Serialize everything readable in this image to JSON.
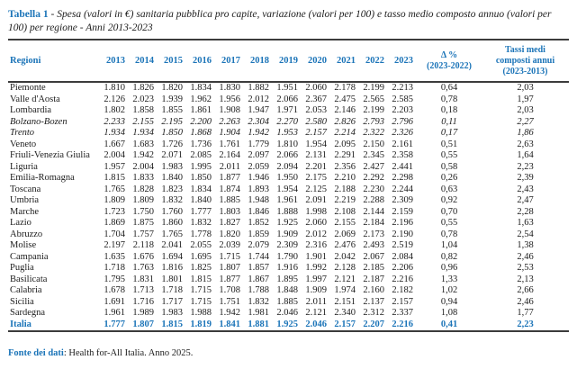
{
  "title": {
    "label": "Tabella 1",
    "separator": " - ",
    "text": "Spesa (valori in €) sanitaria pubblica pro capite, variazione (valori per 100) e tasso medio composto annuo (valori per 100) per regione - Anni 2013-2023"
  },
  "colors": {
    "accent": "#1b74b8",
    "rule": "#3c3c3c"
  },
  "table": {
    "region_header": "Regioni",
    "year_columns": [
      "2013",
      "2014",
      "2015",
      "2016",
      "2017",
      "2018",
      "2019",
      "2020",
      "2021",
      "2022",
      "2023"
    ],
    "delta_header": [
      "Δ %",
      "(2023-2022)"
    ],
    "tassi_header": [
      "Tassi medi",
      "composti annui",
      "(2023-2013)"
    ],
    "rows": [
      {
        "region": "Piemonte",
        "values": [
          "1.810",
          "1.826",
          "1.820",
          "1.834",
          "1.830",
          "1.882",
          "1.951",
          "2.060",
          "2.178",
          "2.199",
          "2.213"
        ],
        "delta": "0,64",
        "tasso": "2,03",
        "style": "normal"
      },
      {
        "region": "Valle d'Aosta",
        "values": [
          "2.126",
          "2.023",
          "1.939",
          "1.962",
          "1.956",
          "2.012",
          "2.066",
          "2.367",
          "2.475",
          "2.565",
          "2.585"
        ],
        "delta": "0,78",
        "tasso": "1,97",
        "style": "normal"
      },
      {
        "region": "Lombardia",
        "values": [
          "1.802",
          "1.858",
          "1.855",
          "1.861",
          "1.908",
          "1.947",
          "1.971",
          "2.053",
          "2.146",
          "2.199",
          "2.203"
        ],
        "delta": "0,18",
        "tasso": "2,03",
        "style": "normal"
      },
      {
        "region": "Bolzano-Bozen",
        "values": [
          "2.233",
          "2.155",
          "2.195",
          "2.200",
          "2.263",
          "2.304",
          "2.270",
          "2.580",
          "2.826",
          "2.793",
          "2.796"
        ],
        "delta": "0,11",
        "tasso": "2,27",
        "style": "italic"
      },
      {
        "region": "Trento",
        "values": [
          "1.934",
          "1.934",
          "1.850",
          "1.868",
          "1.904",
          "1.942",
          "1.953",
          "2.157",
          "2.214",
          "2.322",
          "2.326"
        ],
        "delta": "0,17",
        "tasso": "1,86",
        "style": "italic"
      },
      {
        "region": "Veneto",
        "values": [
          "1.667",
          "1.683",
          "1.726",
          "1.736",
          "1.761",
          "1.779",
          "1.810",
          "1.954",
          "2.095",
          "2.150",
          "2.161"
        ],
        "delta": "0,51",
        "tasso": "2,63",
        "style": "normal"
      },
      {
        "region": "Friuli-Venezia Giulia",
        "values": [
          "2.004",
          "1.942",
          "2.071",
          "2.085",
          "2.164",
          "2.097",
          "2.066",
          "2.131",
          "2.291",
          "2.345",
          "2.358"
        ],
        "delta": "0,55",
        "tasso": "1,64",
        "style": "normal"
      },
      {
        "region": "Liguria",
        "values": [
          "1.957",
          "2.004",
          "1.983",
          "1.995",
          "2.011",
          "2.059",
          "2.094",
          "2.201",
          "2.356",
          "2.427",
          "2.441"
        ],
        "delta": "0,58",
        "tasso": "2,23",
        "style": "normal"
      },
      {
        "region": "Emilia-Romagna",
        "values": [
          "1.815",
          "1.833",
          "1.840",
          "1.850",
          "1.877",
          "1.946",
          "1.950",
          "2.175",
          "2.210",
          "2.292",
          "2.298"
        ],
        "delta": "0,26",
        "tasso": "2,39",
        "style": "normal"
      },
      {
        "region": "Toscana",
        "values": [
          "1.765",
          "1.828",
          "1.823",
          "1.834",
          "1.874",
          "1.893",
          "1.954",
          "2.125",
          "2.188",
          "2.230",
          "2.244"
        ],
        "delta": "0,63",
        "tasso": "2,43",
        "style": "normal"
      },
      {
        "region": "Umbria",
        "values": [
          "1.809",
          "1.809",
          "1.832",
          "1.840",
          "1.885",
          "1.948",
          "1.961",
          "2.091",
          "2.219",
          "2.288",
          "2.309"
        ],
        "delta": "0,92",
        "tasso": "2,47",
        "style": "normal"
      },
      {
        "region": "Marche",
        "values": [
          "1.723",
          "1.750",
          "1.760",
          "1.777",
          "1.803",
          "1.846",
          "1.888",
          "1.998",
          "2.108",
          "2.144",
          "2.159"
        ],
        "delta": "0,70",
        "tasso": "2,28",
        "style": "normal"
      },
      {
        "region": "Lazio",
        "values": [
          "1.869",
          "1.875",
          "1.860",
          "1.832",
          "1.827",
          "1.852",
          "1.925",
          "2.060",
          "2.155",
          "2.184",
          "2.196"
        ],
        "delta": "0,55",
        "tasso": "1,63",
        "style": "normal"
      },
      {
        "region": "Abruzzo",
        "values": [
          "1.704",
          "1.757",
          "1.765",
          "1.778",
          "1.820",
          "1.859",
          "1.909",
          "2.012",
          "2.069",
          "2.173",
          "2.190"
        ],
        "delta": "0,78",
        "tasso": "2,54",
        "style": "normal"
      },
      {
        "region": "Molise",
        "values": [
          "2.197",
          "2.118",
          "2.041",
          "2.055",
          "2.039",
          "2.079",
          "2.309",
          "2.316",
          "2.476",
          "2.493",
          "2.519"
        ],
        "delta": "1,04",
        "tasso": "1,38",
        "style": "normal"
      },
      {
        "region": "Campania",
        "values": [
          "1.635",
          "1.676",
          "1.694",
          "1.695",
          "1.715",
          "1.744",
          "1.790",
          "1.901",
          "2.042",
          "2.067",
          "2.084"
        ],
        "delta": "0,82",
        "tasso": "2,46",
        "style": "normal"
      },
      {
        "region": "Puglia",
        "values": [
          "1.718",
          "1.763",
          "1.816",
          "1.825",
          "1.807",
          "1.857",
          "1.916",
          "1.992",
          "2.128",
          "2.185",
          "2.206"
        ],
        "delta": "0,96",
        "tasso": "2,53",
        "style": "normal"
      },
      {
        "region": "Basilicata",
        "values": [
          "1.795",
          "1.831",
          "1.801",
          "1.815",
          "1.877",
          "1.867",
          "1.895",
          "1.997",
          "2.121",
          "2.187",
          "2.216"
        ],
        "delta": "1,33",
        "tasso": "2,13",
        "style": "normal"
      },
      {
        "region": "Calabria",
        "values": [
          "1.678",
          "1.713",
          "1.718",
          "1.715",
          "1.708",
          "1.788",
          "1.848",
          "1.909",
          "1.974",
          "2.160",
          "2.182"
        ],
        "delta": "1,02",
        "tasso": "2,66",
        "style": "normal"
      },
      {
        "region": "Sicilia",
        "values": [
          "1.691",
          "1.716",
          "1.717",
          "1.715",
          "1.751",
          "1.832",
          "1.885",
          "2.011",
          "2.151",
          "2.137",
          "2.157"
        ],
        "delta": "0,94",
        "tasso": "2,46",
        "style": "normal"
      },
      {
        "region": "Sardegna",
        "values": [
          "1.961",
          "1.989",
          "1.983",
          "1.988",
          "1.942",
          "1.981",
          "2.046",
          "2.121",
          "2.340",
          "2.312",
          "2.337"
        ],
        "delta": "1,08",
        "tasso": "1,77",
        "style": "normal"
      },
      {
        "region": "Italia",
        "values": [
          "1.777",
          "1.807",
          "1.815",
          "1.819",
          "1.841",
          "1.881",
          "1.925",
          "2.046",
          "2.157",
          "2.207",
          "2.216"
        ],
        "delta": "0,41",
        "tasso": "2,23",
        "style": "total"
      }
    ]
  },
  "footer": {
    "label": "Fonte dei dati",
    "text": ": Health for-All Italia. Anno 2025."
  }
}
